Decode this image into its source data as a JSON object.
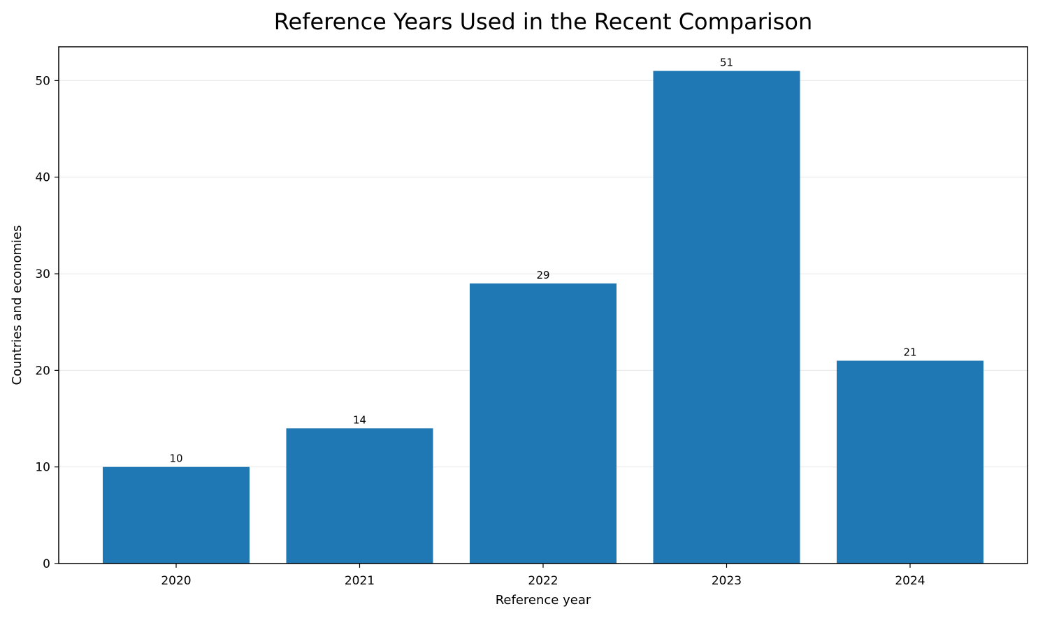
{
  "chart_data": {
    "type": "bar",
    "title": "Reference Years Used in the Recent Comparison",
    "xlabel": "Reference year",
    "ylabel": "Countries and economies",
    "categories": [
      "2020",
      "2021",
      "2022",
      "2023",
      "2024"
    ],
    "values": [
      10,
      14,
      29,
      51,
      21
    ],
    "data_labels": [
      "10",
      "14",
      "29",
      "51",
      "21"
    ],
    "ylim": [
      0,
      53.5
    ],
    "yticks": [
      0,
      10,
      20,
      30,
      40,
      50
    ],
    "grid": "horizontal",
    "legend": "none",
    "colors": {
      "bar": "#1f77b4",
      "grid": "#ebebeb",
      "axis": "#000000"
    }
  }
}
